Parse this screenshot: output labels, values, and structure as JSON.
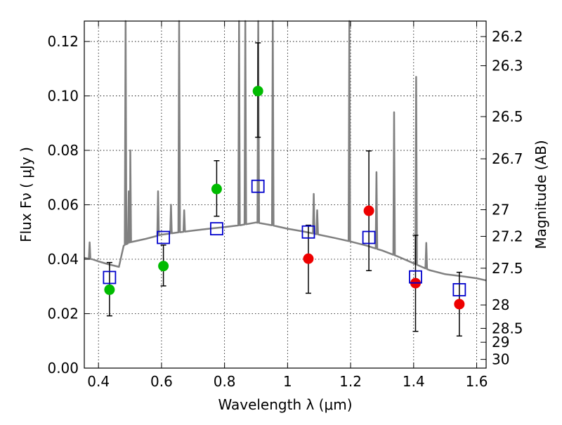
{
  "chart_data": {
    "type": "scatter",
    "xlabel": "Wavelength  λ (μm)",
    "ylabel": "Flux  Fν  ( μJy )",
    "y2label": "Magnitude (AB)",
    "xlim": [
      0.355,
      1.63
    ],
    "ylim": [
      0.0,
      0.1275
    ],
    "grid": true,
    "x_ticks": [
      0.4,
      0.6,
      0.8,
      1.0,
      1.2,
      1.4,
      1.6
    ],
    "x_tick_labels": [
      "0.4",
      "0.6",
      "0.8",
      "1",
      "1.2",
      "1.4",
      "1.6"
    ],
    "y_ticks": [
      0.0,
      0.02,
      0.04,
      0.06,
      0.08,
      0.1,
      0.12
    ],
    "y_tick_labels": [
      "0.00",
      "0.02",
      "0.04",
      "0.06",
      "0.08",
      "0.10",
      "0.12"
    ],
    "mag_ticks": [
      {
        "label": "26.2",
        "flux": 0.1218
      },
      {
        "label": "26.3",
        "flux": 0.1111
      },
      {
        "label": "26.5",
        "flux": 0.0924
      },
      {
        "label": "26.7",
        "flux": 0.0769
      },
      {
        "label": "27",
        "flux": 0.0582
      },
      {
        "label": "27.2",
        "flux": 0.0484
      },
      {
        "label": "27.5",
        "flux": 0.0367
      },
      {
        "label": "28",
        "flux": 0.0232
      },
      {
        "label": "28.5",
        "flux": 0.0146
      },
      {
        "label": "29",
        "flux": 0.0095
      },
      {
        "label": "30",
        "flux": 0.0032
      }
    ],
    "series": [
      {
        "color": "#00bb00",
        "marker": "circle",
        "points": [
          {
            "x": 0.435,
            "y": 0.0288,
            "yerr_low": 0.0192,
            "yerr_high": 0.0388
          },
          {
            "x": 0.606,
            "y": 0.0375,
            "yerr_low": 0.0302,
            "yerr_high": 0.0452
          },
          {
            "x": 0.775,
            "y": 0.0658,
            "yerr_low": 0.0558,
            "yerr_high": 0.0762
          },
          {
            "x": 0.906,
            "y": 0.1018,
            "yerr_low": 0.0848,
            "yerr_high": 0.1195
          }
        ]
      },
      {
        "color": "#ee0000",
        "marker": "circle",
        "points": [
          {
            "x": 1.066,
            "y": 0.0402,
            "yerr_low": 0.0275,
            "yerr_high": 0.0525
          },
          {
            "x": 1.258,
            "y": 0.0578,
            "yerr_low": 0.0358,
            "yerr_high": 0.0798
          },
          {
            "x": 1.406,
            "y": 0.0312,
            "yerr_low": 0.0135,
            "yerr_high": 0.0488
          },
          {
            "x": 1.545,
            "y": 0.0235,
            "yerr_low": 0.0118,
            "yerr_high": 0.0352
          }
        ]
      },
      {
        "color": "#0000cc",
        "marker": "open-square",
        "points": [
          {
            "x": 0.435,
            "y": 0.0333
          },
          {
            "x": 0.606,
            "y": 0.048
          },
          {
            "x": 0.775,
            "y": 0.0512
          },
          {
            "x": 0.906,
            "y": 0.0668
          },
          {
            "x": 1.066,
            "y": 0.05
          },
          {
            "x": 1.258,
            "y": 0.048
          },
          {
            "x": 1.406,
            "y": 0.0335
          },
          {
            "x": 1.545,
            "y": 0.0288
          }
        ]
      }
    ],
    "model_spectrum": {
      "color": "#808080",
      "continuum": [
        [
          0.355,
          0.0405
        ],
        [
          0.38,
          0.04
        ],
        [
          0.4,
          0.0392
        ],
        [
          0.43,
          0.0382
        ],
        [
          0.465,
          0.0372
        ],
        [
          0.48,
          0.045
        ],
        [
          0.5,
          0.0462
        ],
        [
          0.55,
          0.0475
        ],
        [
          0.6,
          0.049
        ],
        [
          0.65,
          0.0498
        ],
        [
          0.7,
          0.0505
        ],
        [
          0.75,
          0.0512
        ],
        [
          0.8,
          0.0518
        ],
        [
          0.85,
          0.0525
        ],
        [
          0.9,
          0.0535
        ],
        [
          0.95,
          0.0525
        ],
        [
          1.0,
          0.0512
        ],
        [
          1.05,
          0.0502
        ],
        [
          1.1,
          0.049
        ],
        [
          1.15,
          0.0478
        ],
        [
          1.2,
          0.0465
        ],
        [
          1.25,
          0.045
        ],
        [
          1.3,
          0.0432
        ],
        [
          1.35,
          0.041
        ],
        [
          1.4,
          0.0385
        ],
        [
          1.45,
          0.036
        ],
        [
          1.5,
          0.0345
        ],
        [
          1.55,
          0.0338
        ],
        [
          1.6,
          0.033
        ],
        [
          1.63,
          0.0322
        ]
      ],
      "lines": [
        {
          "x": 0.372,
          "peak": 0.0462
        },
        {
          "x": 0.486,
          "peak": 0.14
        },
        {
          "x": 0.496,
          "peak": 0.065
        },
        {
          "x": 0.501,
          "peak": 0.08
        },
        {
          "x": 0.589,
          "peak": 0.065
        },
        {
          "x": 0.63,
          "peak": 0.06
        },
        {
          "x": 0.656,
          "peak": 0.14
        },
        {
          "x": 0.672,
          "peak": 0.058
        },
        {
          "x": 0.846,
          "peak": 0.14
        },
        {
          "x": 0.866,
          "peak": 0.14
        },
        {
          "x": 0.907,
          "peak": 0.14
        },
        {
          "x": 0.953,
          "peak": 0.14
        },
        {
          "x": 1.083,
          "peak": 0.064
        },
        {
          "x": 1.094,
          "peak": 0.058
        },
        {
          "x": 1.196,
          "peak": 0.14
        },
        {
          "x": 1.282,
          "peak": 0.072
        },
        {
          "x": 1.338,
          "peak": 0.094
        },
        {
          "x": 1.408,
          "peak": 0.107
        },
        {
          "x": 1.44,
          "peak": 0.046
        }
      ]
    }
  }
}
